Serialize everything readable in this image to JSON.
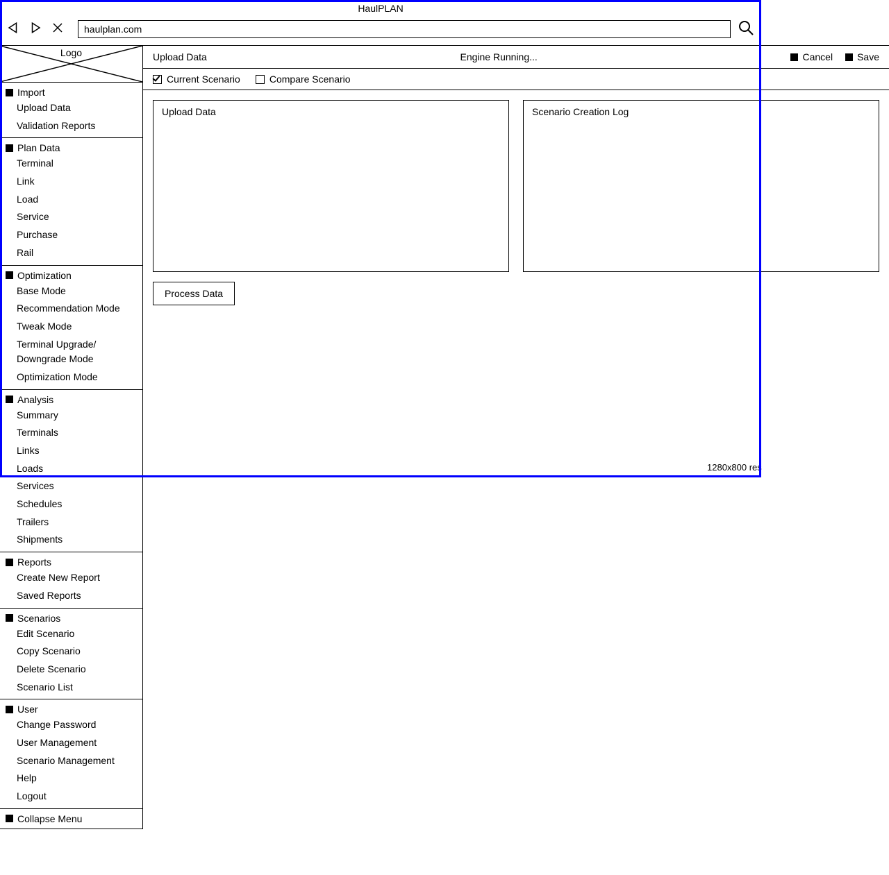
{
  "app_title": "HaulPLAN",
  "address_bar": {
    "value": "haulplan.com"
  },
  "logo_label": "Logo",
  "sidebar": {
    "sections": [
      {
        "label": "Import",
        "items": [
          "Upload Data",
          "Validation Reports"
        ]
      },
      {
        "label": "Plan Data",
        "items": [
          "Terminal",
          "Link",
          "Load",
          "Service",
          "Purchase",
          "Rail"
        ]
      },
      {
        "label": "Optimization",
        "items": [
          "Base Mode",
          "Recommendation Mode",
          "Tweak Mode",
          "Terminal Upgrade/ Downgrade Mode",
          "Optimization Mode"
        ]
      },
      {
        "label": "Analysis",
        "items": [
          "Summary",
          "Terminals",
          "Links",
          "Loads",
          "Services",
          "Schedules",
          "Trailers",
          "Shipments"
        ]
      },
      {
        "label": "Reports",
        "items": [
          "Create New Report",
          "Saved Reports"
        ]
      },
      {
        "label": "Scenarios",
        "items": [
          "Edit Scenario",
          "Copy Scenario",
          "Delete Scenario",
          "Scenario List"
        ]
      },
      {
        "label": "User",
        "items": [
          "Change Password",
          "User Management",
          "Scenario Management",
          "Help",
          "Logout"
        ]
      },
      {
        "label": "Collapse Menu",
        "items": []
      }
    ]
  },
  "page": {
    "title": "Upload Data",
    "status": "Engine Running...",
    "buttons": {
      "cancel": "Cancel",
      "save": "Save"
    }
  },
  "scenario_options": {
    "current": {
      "label": "Current Scenario",
      "checked": true
    },
    "compare": {
      "label": "Compare Scenario",
      "checked": false
    }
  },
  "panels": {
    "upload": "Upload Data",
    "log": "Scenario Creation Log"
  },
  "process_button": "Process Data",
  "resolution_label": "1280x800 res",
  "colors": {
    "frame_border": "#0000ff",
    "line": "#000000",
    "bg": "#ffffff",
    "text": "#000000"
  }
}
